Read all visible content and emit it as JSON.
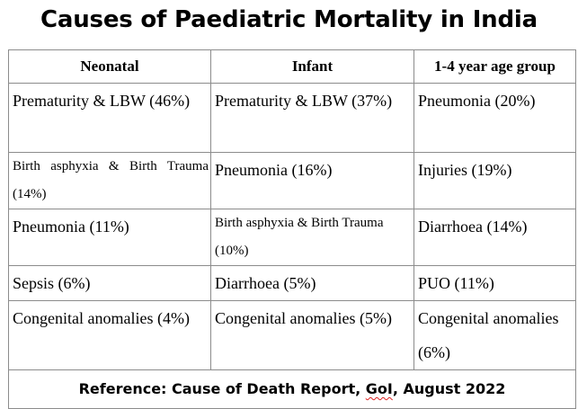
{
  "title": "Causes of Paediatric Mortality in India",
  "columns": [
    "Neonatal",
    "Infant",
    "1-4 year age group"
  ],
  "rows": [
    [
      "Prematurity & LBW (46%)",
      "Prematurity & LBW (37%)",
      "Pneumonia (20%)"
    ],
    [
      "Birth asphyxia & Birth Trauma (14%)",
      "Pneumonia (16%)",
      "Injuries (19%)"
    ],
    [
      "Pneumonia (11%)",
      "Birth asphyxia & Birth Trauma (10%)",
      "Diarrhoea (14%)"
    ],
    [
      "Sepsis (6%)",
      "Diarrhoea (5%)",
      "PUO (11%)"
    ],
    [
      "Congenital anomalies (4%)",
      "Congenital anomalies (5%)",
      "Congenital anomalies (6%)"
    ]
  ],
  "reference": {
    "prefix": "Reference: Cause of Death Report, ",
    "gol": "GoI",
    "suffix": ", August 2022"
  }
}
